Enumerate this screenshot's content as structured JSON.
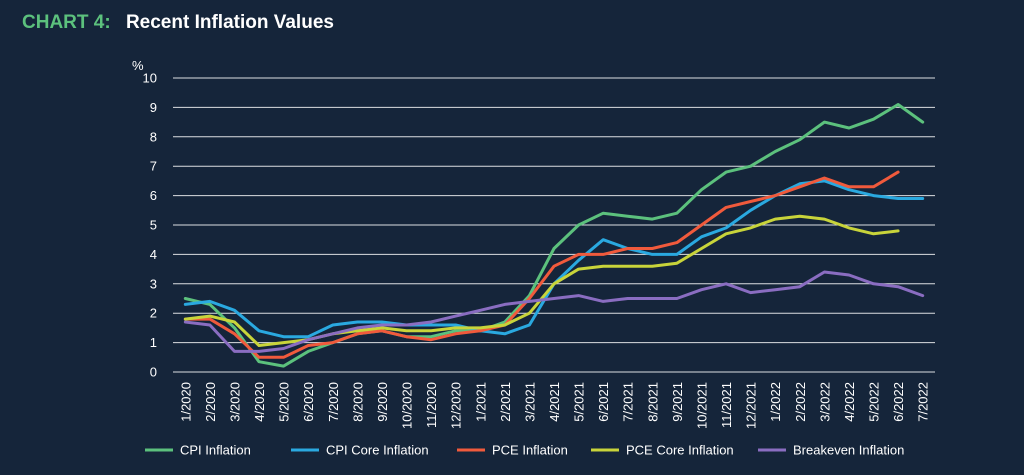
{
  "title": {
    "prefix": "CHART 4:",
    "main": "Recent Inflation Values"
  },
  "colors": {
    "background": "#15253a",
    "title_prefix": "#5cc17d",
    "grid": "#ffffff"
  },
  "chart_data": {
    "type": "line",
    "ylabel": "%",
    "ylim": [
      0,
      10
    ],
    "yticks": [
      0,
      1,
      2,
      3,
      4,
      5,
      6,
      7,
      8,
      9,
      10
    ],
    "grid": true,
    "legend_position": "bottom",
    "categories": [
      "1/2020",
      "2/2020",
      "3/2020",
      "4/2020",
      "5/2020",
      "6/2020",
      "7/2020",
      "8/2020",
      "9/2020",
      "10/2020",
      "11/2020",
      "12/2020",
      "1/2021",
      "2/2021",
      "3/2021",
      "4/2021",
      "5/2021",
      "6/2021",
      "7/2021",
      "8/2021",
      "9/2021",
      "10/2021",
      "11/2021",
      "12/2021",
      "1/2022",
      "2/2022",
      "3/2022",
      "4/2022",
      "5/2022",
      "6/2022",
      "7/2022"
    ],
    "series": [
      {
        "name": "CPI Inflation",
        "color": "#5cc17d",
        "values": [
          2.5,
          2.3,
          1.5,
          0.35,
          0.2,
          0.7,
          1.0,
          1.3,
          1.4,
          1.2,
          1.2,
          1.4,
          1.4,
          1.7,
          2.6,
          4.2,
          5.0,
          5.4,
          5.3,
          5.2,
          5.4,
          6.2,
          6.8,
          7.0,
          7.5,
          7.9,
          8.5,
          8.3,
          8.6,
          9.1,
          8.5
        ]
      },
      {
        "name": "CPI Core Inflation",
        "color": "#2aa9e0",
        "values": [
          2.3,
          2.4,
          2.1,
          1.4,
          1.2,
          1.2,
          1.6,
          1.7,
          1.7,
          1.6,
          1.6,
          1.6,
          1.4,
          1.3,
          1.6,
          3.0,
          3.8,
          4.5,
          4.2,
          4.0,
          4.0,
          4.6,
          4.9,
          5.5,
          6.0,
          6.4,
          6.5,
          6.2,
          6.0,
          5.9,
          5.9
        ]
      },
      {
        "name": "PCE Inflation",
        "color": "#f05a3c",
        "values": [
          1.8,
          1.8,
          1.3,
          0.5,
          0.5,
          0.9,
          1.0,
          1.3,
          1.4,
          1.2,
          1.1,
          1.3,
          1.4,
          1.6,
          2.5,
          3.6,
          4.0,
          4.0,
          4.2,
          4.2,
          4.4,
          5.0,
          5.6,
          5.8,
          6.0,
          6.3,
          6.6,
          6.3,
          6.3,
          6.8,
          null
        ]
      },
      {
        "name": "PCE Core Inflation",
        "color": "#c8d43a",
        "values": [
          1.8,
          1.9,
          1.7,
          0.9,
          1.0,
          1.1,
          1.3,
          1.4,
          1.5,
          1.4,
          1.4,
          1.5,
          1.5,
          1.6,
          2.0,
          3.0,
          3.5,
          3.6,
          3.6,
          3.6,
          3.7,
          4.2,
          4.7,
          4.9,
          5.2,
          5.3,
          5.2,
          4.9,
          4.7,
          4.8,
          null
        ]
      },
      {
        "name": "Breakeven Inflation",
        "color": "#8a6dc1",
        "values": [
          1.7,
          1.6,
          0.7,
          0.7,
          0.8,
          1.1,
          1.3,
          1.5,
          1.6,
          1.6,
          1.7,
          1.9,
          2.1,
          2.3,
          2.4,
          2.5,
          2.6,
          2.4,
          2.5,
          2.5,
          2.5,
          2.8,
          3.0,
          2.7,
          2.8,
          2.9,
          3.4,
          3.3,
          3.0,
          2.9,
          2.6
        ]
      }
    ]
  }
}
